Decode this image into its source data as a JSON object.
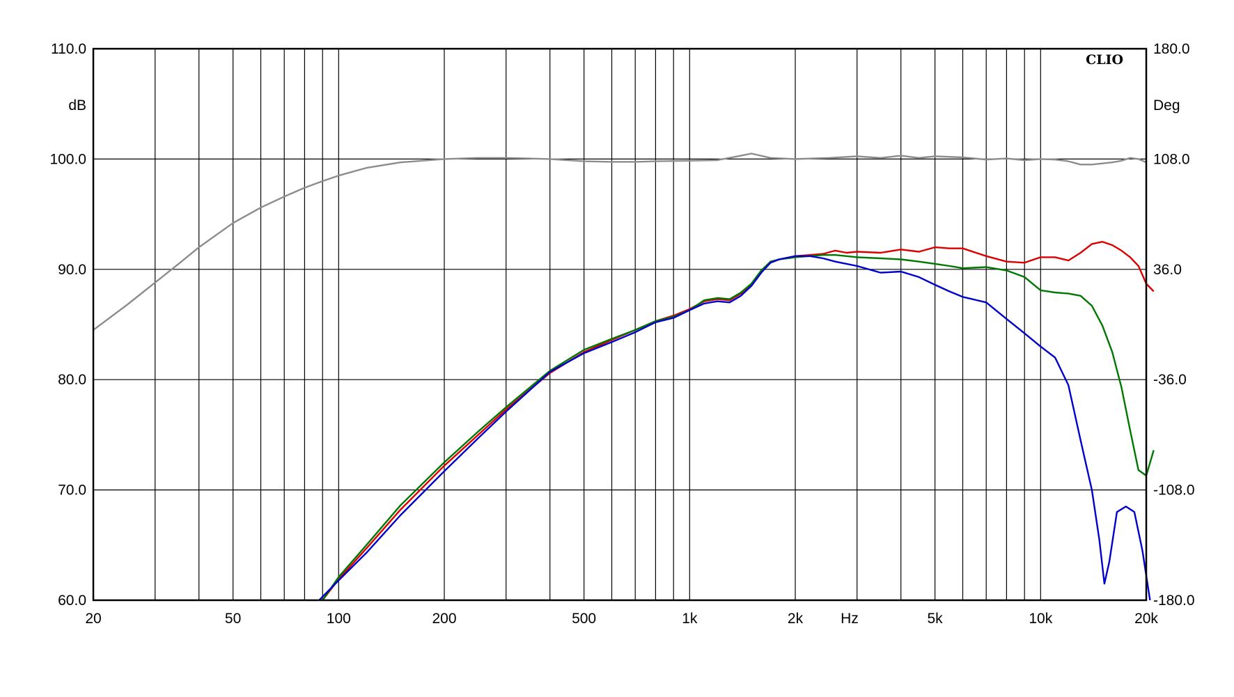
{
  "chart_data": {
    "type": "line",
    "brand": "CLIO",
    "xlabel": "Hz",
    "ylabel_left": "dB",
    "ylabel_right": "Deg",
    "x_scale": "log",
    "xlim": [
      20,
      20000
    ],
    "ylim_left": [
      60,
      110
    ],
    "ylim_right": [
      -180,
      180
    ],
    "grid": true,
    "x_tick_labels": [
      {
        "value": 20,
        "label": "20"
      },
      {
        "value": 50,
        "label": "50"
      },
      {
        "value": 100,
        "label": "100"
      },
      {
        "value": 200,
        "label": "200"
      },
      {
        "value": 500,
        "label": "500"
      },
      {
        "value": 1000,
        "label": "1k"
      },
      {
        "value": 2000,
        "label": "2k"
      },
      {
        "value": 5000,
        "label": "5k"
      },
      {
        "value": 10000,
        "label": "10k"
      },
      {
        "value": 20000,
        "label": "20k"
      }
    ],
    "x_gridlines": [
      20,
      30,
      40,
      50,
      60,
      70,
      80,
      90,
      100,
      200,
      300,
      400,
      500,
      600,
      700,
      800,
      900,
      1000,
      2000,
      3000,
      4000,
      5000,
      6000,
      7000,
      8000,
      9000,
      10000,
      20000
    ],
    "y_left_tick_labels": [
      "110.0",
      "100.0",
      "90.0",
      "80.0",
      "70.0",
      "60.0"
    ],
    "y_left_tick_values": [
      110,
      100,
      90,
      80,
      70,
      60
    ],
    "y_right_tick_labels": [
      "180.0",
      "108.0",
      "36.0",
      "-36.0",
      "-108.0",
      "-180.0"
    ],
    "y_gridlines": [
      100,
      90,
      80,
      70
    ],
    "series": [
      {
        "color": "#8c8c8c",
        "points": [
          [
            20,
            84.5
          ],
          [
            25,
            86.8
          ],
          [
            30,
            88.8
          ],
          [
            35,
            90.5
          ],
          [
            40,
            92.0
          ],
          [
            50,
            94.2
          ],
          [
            60,
            95.6
          ],
          [
            70,
            96.6
          ],
          [
            80,
            97.4
          ],
          [
            90,
            98.0
          ],
          [
            100,
            98.5
          ],
          [
            120,
            99.2
          ],
          [
            150,
            99.7
          ],
          [
            200,
            100.0
          ],
          [
            250,
            100.1
          ],
          [
            300,
            100.1
          ],
          [
            400,
            100.0
          ],
          [
            500,
            99.8
          ],
          [
            600,
            99.75
          ],
          [
            700,
            99.75
          ],
          [
            800,
            99.8
          ],
          [
            1000,
            99.85
          ],
          [
            1200,
            99.9
          ],
          [
            1400,
            100.3
          ],
          [
            1500,
            100.5
          ],
          [
            1700,
            100.1
          ],
          [
            2000,
            100.0
          ],
          [
            2500,
            100.1
          ],
          [
            3000,
            100.25
          ],
          [
            3500,
            100.1
          ],
          [
            4000,
            100.3
          ],
          [
            4500,
            100.1
          ],
          [
            5000,
            100.25
          ],
          [
            6000,
            100.15
          ],
          [
            7000,
            99.95
          ],
          [
            8000,
            100.05
          ],
          [
            9000,
            99.9
          ],
          [
            10000,
            100.0
          ],
          [
            11000,
            99.95
          ],
          [
            12000,
            99.8
          ],
          [
            13000,
            99.5
          ],
          [
            14000,
            99.5
          ],
          [
            15000,
            99.6
          ],
          [
            16000,
            99.7
          ],
          [
            17000,
            99.85
          ],
          [
            18000,
            100.1
          ],
          [
            19000,
            100.0
          ],
          [
            20000,
            99.7
          ]
        ]
      },
      {
        "color": "#dd0000",
        "points": [
          [
            90,
            60.0
          ],
          [
            100,
            61.9
          ],
          [
            120,
            64.7
          ],
          [
            150,
            68.2
          ],
          [
            200,
            72.2
          ],
          [
            250,
            75.0
          ],
          [
            300,
            77.3
          ],
          [
            400,
            80.6
          ],
          [
            500,
            82.5
          ],
          [
            600,
            83.6
          ],
          [
            700,
            84.5
          ],
          [
            800,
            85.3
          ],
          [
            900,
            85.8
          ],
          [
            1000,
            86.4
          ],
          [
            1100,
            87.1
          ],
          [
            1200,
            87.3
          ],
          [
            1300,
            87.2
          ],
          [
            1400,
            87.8
          ],
          [
            1500,
            88.6
          ],
          [
            1600,
            89.8
          ],
          [
            1700,
            90.6
          ],
          [
            1800,
            90.9
          ],
          [
            2000,
            91.2
          ],
          [
            2200,
            91.3
          ],
          [
            2400,
            91.4
          ],
          [
            2600,
            91.7
          ],
          [
            2800,
            91.5
          ],
          [
            3000,
            91.6
          ],
          [
            3500,
            91.5
          ],
          [
            4000,
            91.8
          ],
          [
            4500,
            91.6
          ],
          [
            5000,
            92.0
          ],
          [
            5500,
            91.9
          ],
          [
            6000,
            91.9
          ],
          [
            7000,
            91.2
          ],
          [
            8000,
            90.7
          ],
          [
            9000,
            90.6
          ],
          [
            10000,
            91.1
          ],
          [
            11000,
            91.1
          ],
          [
            12000,
            90.8
          ],
          [
            13000,
            91.5
          ],
          [
            14000,
            92.3
          ],
          [
            15000,
            92.5
          ],
          [
            16000,
            92.2
          ],
          [
            17000,
            91.7
          ],
          [
            18000,
            91.1
          ],
          [
            19000,
            90.3
          ],
          [
            20000,
            88.7
          ],
          [
            21000,
            88.0
          ]
        ]
      },
      {
        "color": "#007700",
        "points": [
          [
            90,
            60.0
          ],
          [
            100,
            62.1
          ],
          [
            120,
            65.0
          ],
          [
            150,
            68.6
          ],
          [
            200,
            72.5
          ],
          [
            250,
            75.3
          ],
          [
            300,
            77.5
          ],
          [
            400,
            80.8
          ],
          [
            500,
            82.7
          ],
          [
            600,
            83.7
          ],
          [
            700,
            84.5
          ],
          [
            800,
            85.3
          ],
          [
            900,
            85.7
          ],
          [
            1000,
            86.3
          ],
          [
            1100,
            87.2
          ],
          [
            1200,
            87.4
          ],
          [
            1300,
            87.3
          ],
          [
            1400,
            87.9
          ],
          [
            1500,
            88.7
          ],
          [
            1600,
            89.9
          ],
          [
            1700,
            90.7
          ],
          [
            1800,
            90.9
          ],
          [
            2000,
            91.1
          ],
          [
            2200,
            91.2
          ],
          [
            2400,
            91.3
          ],
          [
            2600,
            91.3
          ],
          [
            2800,
            91.2
          ],
          [
            3000,
            91.1
          ],
          [
            3500,
            91.0
          ],
          [
            4000,
            90.9
          ],
          [
            4500,
            90.7
          ],
          [
            5000,
            90.5
          ],
          [
            5500,
            90.3
          ],
          [
            6000,
            90.1
          ],
          [
            7000,
            90.2
          ],
          [
            8000,
            89.9
          ],
          [
            9000,
            89.3
          ],
          [
            10000,
            88.1
          ],
          [
            11000,
            87.9
          ],
          [
            12000,
            87.8
          ],
          [
            13000,
            87.6
          ],
          [
            14000,
            86.7
          ],
          [
            15000,
            84.9
          ],
          [
            16000,
            82.5
          ],
          [
            17000,
            79.3
          ],
          [
            18000,
            75.4
          ],
          [
            19000,
            71.8
          ],
          [
            20000,
            71.3
          ],
          [
            21000,
            73.6
          ]
        ]
      },
      {
        "color": "#0000cc",
        "points": [
          [
            88,
            60.0
          ],
          [
            100,
            61.8
          ],
          [
            120,
            64.3
          ],
          [
            150,
            67.7
          ],
          [
            200,
            71.7
          ],
          [
            250,
            74.7
          ],
          [
            300,
            77.1
          ],
          [
            400,
            80.7
          ],
          [
            500,
            82.4
          ],
          [
            600,
            83.4
          ],
          [
            700,
            84.3
          ],
          [
            800,
            85.2
          ],
          [
            900,
            85.6
          ],
          [
            1000,
            86.3
          ],
          [
            1100,
            86.9
          ],
          [
            1200,
            87.1
          ],
          [
            1300,
            87.0
          ],
          [
            1400,
            87.6
          ],
          [
            1500,
            88.5
          ],
          [
            1600,
            89.7
          ],
          [
            1700,
            90.6
          ],
          [
            1800,
            90.9
          ],
          [
            2000,
            91.2
          ],
          [
            2200,
            91.2
          ],
          [
            2400,
            91.0
          ],
          [
            2600,
            90.7
          ],
          [
            2800,
            90.5
          ],
          [
            3000,
            90.3
          ],
          [
            3500,
            89.7
          ],
          [
            4000,
            89.8
          ],
          [
            4500,
            89.3
          ],
          [
            5000,
            88.6
          ],
          [
            5500,
            88.0
          ],
          [
            6000,
            87.5
          ],
          [
            7000,
            87.0
          ],
          [
            8000,
            85.5
          ],
          [
            9000,
            84.2
          ],
          [
            10000,
            83.0
          ],
          [
            11000,
            82.0
          ],
          [
            12000,
            79.5
          ],
          [
            13000,
            74.5
          ],
          [
            14000,
            70.0
          ],
          [
            14700,
            65.5
          ],
          [
            15200,
            61.5
          ],
          [
            15700,
            63.5
          ],
          [
            16500,
            68.0
          ],
          [
            17500,
            68.5
          ],
          [
            18500,
            68.0
          ],
          [
            19500,
            64.5
          ],
          [
            20500,
            60.0
          ]
        ]
      }
    ]
  }
}
